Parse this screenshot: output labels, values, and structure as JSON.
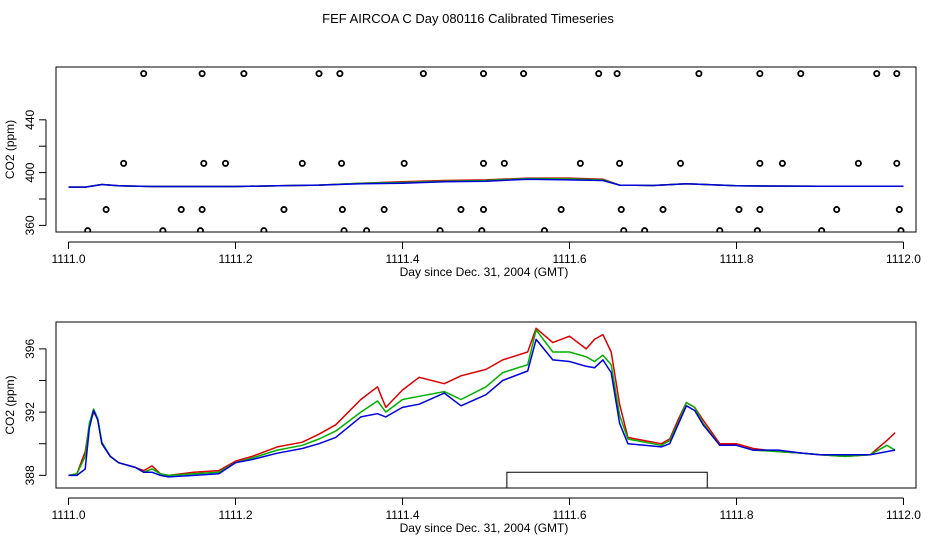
{
  "title": "FEF AIRCOA C  Day 080116  Calibrated Timeseries",
  "colors": {
    "red": "#dd0000",
    "green": "#00b000",
    "blue": "#0000dd",
    "axis": "#000000",
    "bg": "#ffffff"
  },
  "chart_data": [
    {
      "type": "line",
      "panel": "top",
      "ylabel": "CO2 (ppm)",
      "xlabel": "Day since Dec. 31, 2004 (GMT)",
      "xlim": [
        1110.985,
        1112.015
      ],
      "ylim": [
        355,
        480
      ],
      "xticks": [
        1111.0,
        1111.2,
        1111.4,
        1111.6,
        1111.8,
        1112.0
      ],
      "xtick_labels": [
        "1111.0",
        "1111.2",
        "1111.4",
        "1111.6",
        "1111.8",
        "1112.0"
      ],
      "yticks": [
        360,
        400,
        440
      ],
      "ytick_labels": [
        "360",
        "400",
        "440"
      ],
      "series": [
        {
          "name": "red",
          "x": [
            1111.0,
            1111.02,
            1111.04,
            1111.06,
            1111.1,
            1111.2,
            1111.25,
            1111.3,
            1111.35,
            1111.4,
            1111.45,
            1111.5,
            1111.55,
            1111.6,
            1111.64,
            1111.66,
            1111.7,
            1111.74,
            1111.8,
            1111.9,
            1112.0
          ],
          "values": [
            389,
            389,
            391,
            390,
            389.5,
            389.5,
            390,
            390.5,
            392,
            393,
            394,
            394.5,
            395.8,
            395.8,
            395,
            390.5,
            390.2,
            391.5,
            390,
            389.6,
            389.6
          ]
        },
        {
          "name": "green",
          "x": [
            1111.0,
            1111.02,
            1111.04,
            1111.06,
            1111.1,
            1111.2,
            1111.25,
            1111.3,
            1111.35,
            1111.4,
            1111.45,
            1111.5,
            1111.55,
            1111.6,
            1111.64,
            1111.66,
            1111.7,
            1111.74,
            1111.8,
            1111.9,
            1112.0
          ],
          "values": [
            389,
            389,
            391,
            390,
            389.5,
            389.5,
            390,
            390.5,
            392,
            392.5,
            393.5,
            394,
            395.5,
            395.2,
            394.5,
            390.5,
            390.2,
            391.5,
            390,
            389.6,
            389.6
          ]
        },
        {
          "name": "blue",
          "x": [
            1111.0,
            1111.02,
            1111.04,
            1111.06,
            1111.1,
            1111.2,
            1111.25,
            1111.3,
            1111.35,
            1111.4,
            1111.45,
            1111.5,
            1111.55,
            1111.6,
            1111.64,
            1111.66,
            1111.7,
            1111.74,
            1111.8,
            1111.9,
            1112.0
          ],
          "values": [
            389,
            389,
            391,
            390,
            389.5,
            389.5,
            390,
            390.5,
            391.5,
            392,
            393,
            393.5,
            395,
            394.5,
            394,
            390.5,
            390.2,
            391.5,
            390,
            389.6,
            389.6
          ]
        }
      ],
      "outlier_points": {
        "x": [
          1111.09,
          1111.16,
          1111.21,
          1111.3,
          1111.325,
          1111.425,
          1111.497,
          1111.545,
          1111.635,
          1111.657,
          1111.755,
          1111.828,
          1111.877,
          1111.968,
          1111.992,
          1111.066,
          1111.162,
          1111.188,
          1111.28,
          1111.327,
          1111.402,
          1111.497,
          1111.522,
          1111.613,
          1111.66,
          1111.733,
          1111.828,
          1111.855,
          1111.946,
          1111.992,
          1111.045,
          1111.135,
          1111.16,
          1111.258,
          1111.328,
          1111.378,
          1111.47,
          1111.497,
          1111.59,
          1111.662,
          1111.712,
          1111.803,
          1111.828,
          1111.92,
          1111.995,
          1111.023,
          1111.113,
          1111.158,
          1111.234,
          1111.33,
          1111.357,
          1111.445,
          1111.495,
          1111.57,
          1111.665,
          1111.69,
          1111.78,
          1111.825,
          1111.902,
          1111.997
        ],
        "values": [
          475,
          475,
          475,
          475,
          475,
          475,
          475,
          475,
          475,
          475,
          475,
          475,
          475,
          475,
          475,
          407,
          407,
          407,
          407,
          407,
          407,
          407,
          407,
          407,
          407,
          407,
          407,
          407,
          407,
          407,
          372,
          372,
          372,
          372,
          372,
          372,
          372,
          372,
          372,
          372,
          372,
          372,
          372,
          372,
          372,
          356,
          356,
          356,
          356,
          356,
          356,
          356,
          356,
          356,
          356,
          356,
          356,
          356,
          356,
          356
        ]
      }
    },
    {
      "type": "line",
      "panel": "bottom",
      "ylabel": "CO2 (ppm)",
      "xlabel": "Day since Dec. 31, 2004 (GMT)",
      "xlim": [
        1110.985,
        1112.015
      ],
      "ylim": [
        387.2,
        397.7
      ],
      "xticks": [
        1111.0,
        1111.2,
        1111.4,
        1111.6,
        1111.8,
        1112.0
      ],
      "xtick_labels": [
        "1111.0",
        "1111.2",
        "1111.4",
        "1111.6",
        "1111.8",
        "1112.0"
      ],
      "yticks": [
        388,
        392,
        396
      ],
      "ytick_labels": [
        "388",
        "392",
        "396"
      ],
      "series": [
        {
          "name": "red",
          "x": [
            1111.0,
            1111.01,
            1111.02,
            1111.025,
            1111.03,
            1111.035,
            1111.04,
            1111.05,
            1111.06,
            1111.08,
            1111.09,
            1111.1,
            1111.11,
            1111.12,
            1111.15,
            1111.18,
            1111.2,
            1111.22,
            1111.25,
            1111.28,
            1111.3,
            1111.32,
            1111.35,
            1111.37,
            1111.38,
            1111.4,
            1111.42,
            1111.45,
            1111.47,
            1111.5,
            1111.52,
            1111.55,
            1111.56,
            1111.58,
            1111.6,
            1111.62,
            1111.63,
            1111.64,
            1111.65,
            1111.66,
            1111.67,
            1111.69,
            1111.71,
            1111.72,
            1111.73,
            1111.74,
            1111.75,
            1111.76,
            1111.78,
            1111.8,
            1111.82,
            1111.85,
            1111.88,
            1111.9,
            1111.93,
            1111.96,
            1111.98,
            1111.99
          ],
          "values": [
            388.0,
            388.1,
            389.5,
            391.2,
            392.0,
            391.6,
            390.0,
            389.2,
            388.8,
            388.5,
            388.3,
            388.6,
            388.1,
            388.0,
            388.2,
            388.3,
            388.9,
            389.2,
            389.8,
            390.1,
            390.6,
            391.2,
            392.8,
            393.6,
            392.3,
            393.4,
            394.2,
            393.8,
            394.3,
            394.7,
            395.3,
            395.8,
            397.3,
            396.4,
            396.8,
            396.0,
            396.6,
            396.9,
            395.8,
            392.5,
            390.4,
            390.2,
            390.0,
            390.3,
            391.5,
            392.6,
            392.3,
            391.5,
            390.0,
            390.0,
            389.7,
            389.5,
            389.4,
            389.3,
            389.2,
            389.3,
            390.2,
            390.7
          ]
        },
        {
          "name": "green",
          "x": [
            1111.0,
            1111.01,
            1111.02,
            1111.025,
            1111.03,
            1111.035,
            1111.04,
            1111.05,
            1111.06,
            1111.08,
            1111.09,
            1111.1,
            1111.11,
            1111.12,
            1111.15,
            1111.18,
            1111.2,
            1111.22,
            1111.25,
            1111.28,
            1111.3,
            1111.32,
            1111.35,
            1111.37,
            1111.38,
            1111.4,
            1111.42,
            1111.45,
            1111.47,
            1111.5,
            1111.52,
            1111.55,
            1111.56,
            1111.58,
            1111.6,
            1111.62,
            1111.63,
            1111.64,
            1111.65,
            1111.66,
            1111.67,
            1111.69,
            1111.71,
            1111.72,
            1111.73,
            1111.74,
            1111.75,
            1111.76,
            1111.78,
            1111.8,
            1111.82,
            1111.85,
            1111.88,
            1111.9,
            1111.93,
            1111.96,
            1111.98,
            1111.99
          ],
          "values": [
            388.0,
            388.1,
            389.2,
            391.3,
            392.2,
            391.6,
            390.1,
            389.2,
            388.8,
            388.5,
            388.2,
            388.4,
            388.1,
            388.0,
            388.1,
            388.2,
            388.8,
            389.1,
            389.6,
            389.9,
            390.3,
            390.8,
            392.0,
            392.7,
            392.0,
            392.8,
            393.0,
            393.3,
            392.8,
            393.6,
            394.5,
            395.0,
            397.2,
            395.8,
            395.8,
            395.5,
            395.2,
            395.6,
            395.0,
            391.8,
            390.3,
            390.1,
            389.9,
            390.2,
            391.3,
            392.6,
            392.3,
            391.3,
            389.9,
            389.9,
            389.6,
            389.5,
            389.4,
            389.3,
            389.2,
            389.3,
            389.9,
            389.6
          ]
        },
        {
          "name": "blue",
          "x": [
            1111.0,
            1111.01,
            1111.02,
            1111.025,
            1111.03,
            1111.035,
            1111.04,
            1111.05,
            1111.06,
            1111.08,
            1111.09,
            1111.1,
            1111.11,
            1111.12,
            1111.15,
            1111.18,
            1111.2,
            1111.22,
            1111.25,
            1111.28,
            1111.3,
            1111.32,
            1111.35,
            1111.37,
            1111.38,
            1111.4,
            1111.42,
            1111.45,
            1111.47,
            1111.5,
            1111.52,
            1111.55,
            1111.56,
            1111.58,
            1111.6,
            1111.62,
            1111.63,
            1111.64,
            1111.65,
            1111.66,
            1111.67,
            1111.69,
            1111.71,
            1111.72,
            1111.73,
            1111.74,
            1111.75,
            1111.76,
            1111.78,
            1111.8,
            1111.82,
            1111.85,
            1111.88,
            1111.9,
            1111.93,
            1111.96,
            1111.98,
            1111.99
          ],
          "values": [
            388.0,
            388.0,
            388.4,
            391.0,
            392.1,
            391.5,
            390.0,
            389.2,
            388.8,
            388.5,
            388.2,
            388.2,
            388.0,
            387.9,
            388.0,
            388.1,
            388.8,
            389.0,
            389.4,
            389.7,
            390.0,
            390.4,
            391.7,
            391.9,
            391.7,
            392.3,
            392.5,
            393.2,
            392.4,
            393.1,
            394.0,
            394.6,
            396.6,
            395.3,
            395.2,
            394.9,
            394.8,
            395.3,
            394.5,
            391.3,
            390.0,
            389.9,
            389.8,
            390.0,
            391.2,
            392.4,
            392.1,
            391.2,
            389.9,
            389.9,
            389.6,
            389.6,
            389.4,
            389.3,
            389.3,
            389.3,
            389.5,
            389.6
          ]
        }
      ],
      "bracket": {
        "x_start": 1111.525,
        "x_end": 1111.765,
        "y_top": 388.2,
        "y_bottom": 387.2
      }
    }
  ]
}
